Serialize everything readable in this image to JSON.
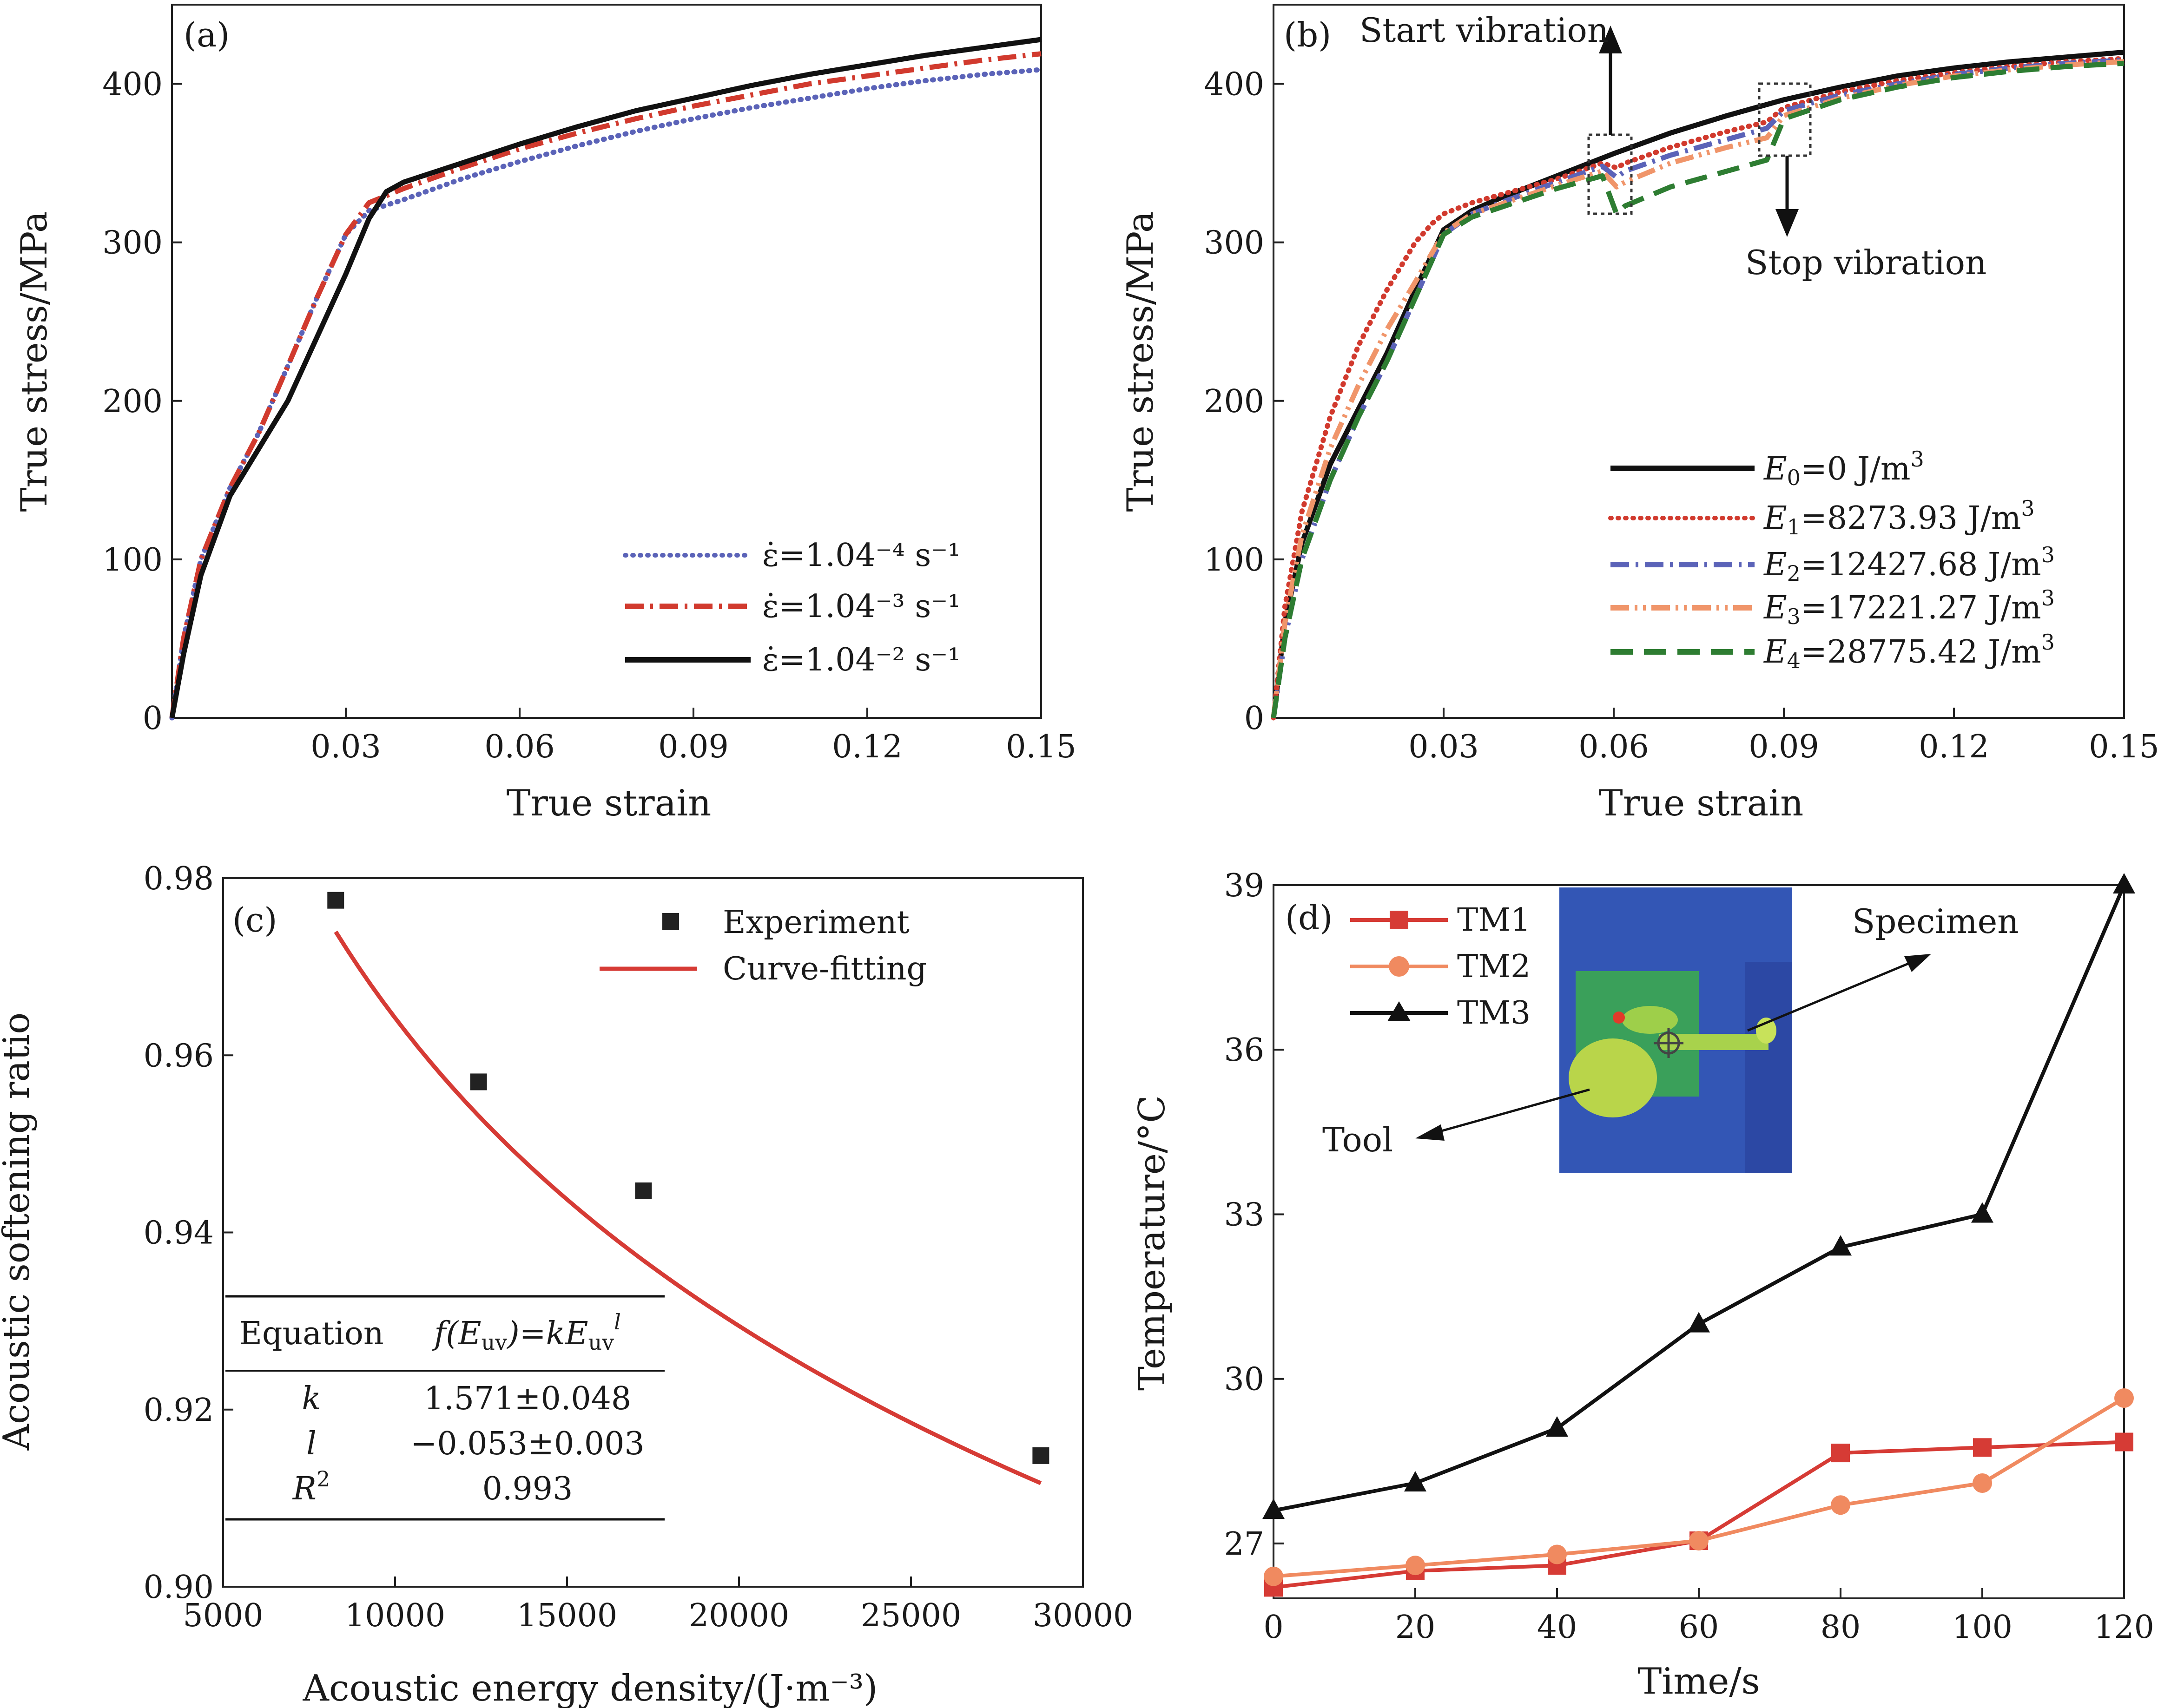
{
  "chart_data": [
    {
      "panel": "(a)",
      "type": "line",
      "xlabel": "True strain",
      "ylabel": "True stress/MPa",
      "xlim": [
        0,
        0.15
      ],
      "ylim": [
        0,
        450
      ],
      "xticks": [
        "0.03",
        "0.06",
        "0.09",
        "0.12",
        "0.15"
      ],
      "yticks": [
        "0",
        "100",
        "200",
        "300",
        "400"
      ],
      "grid": false,
      "legend_position": "bottom-right",
      "series": [
        {
          "name": "ε̇=1.04⁻⁴ s⁻¹",
          "color": "#5b63b8",
          "dash": "dotted",
          "x": [
            0,
            0.002,
            0.005,
            0.01,
            0.015,
            0.02,
            0.025,
            0.03,
            0.034,
            0.04,
            0.05,
            0.06,
            0.07,
            0.08,
            0.09,
            0.1,
            0.11,
            0.12,
            0.13,
            0.14,
            0.15
          ],
          "y": [
            0,
            50,
            100,
            145,
            180,
            222,
            265,
            305,
            320,
            327,
            340,
            351,
            361,
            370,
            378,
            385,
            391,
            397,
            402,
            406,
            409
          ]
        },
        {
          "name": "ε̇=1.04⁻³ s⁻¹",
          "color": "#d13a2e",
          "dash": "dashdot",
          "x": [
            0,
            0.002,
            0.005,
            0.01,
            0.015,
            0.02,
            0.025,
            0.03,
            0.034,
            0.04,
            0.05,
            0.06,
            0.07,
            0.08,
            0.09,
            0.1,
            0.11,
            0.12,
            0.13,
            0.14,
            0.15
          ],
          "y": [
            0,
            50,
            100,
            145,
            180,
            222,
            265,
            305,
            325,
            334,
            347,
            359,
            369,
            378,
            386,
            393,
            400,
            405,
            410,
            415,
            419
          ]
        },
        {
          "name": "ε̇=1.04⁻² s⁻¹",
          "color": "#111111",
          "dash": "solid",
          "x": [
            0,
            0.002,
            0.005,
            0.01,
            0.015,
            0.02,
            0.025,
            0.03,
            0.034,
            0.037,
            0.04,
            0.05,
            0.06,
            0.07,
            0.08,
            0.09,
            0.1,
            0.11,
            0.12,
            0.13,
            0.14,
            0.15
          ],
          "y": [
            0,
            40,
            90,
            140,
            170,
            200,
            240,
            280,
            315,
            332,
            338,
            350,
            362,
            373,
            383,
            391,
            399,
            406,
            412,
            418,
            423,
            428
          ]
        }
      ]
    },
    {
      "panel": "(b)",
      "type": "line",
      "xlabel": "True strain",
      "ylabel": "True stress/MPa",
      "xlim": [
        0,
        0.15
      ],
      "ylim": [
        0,
        450
      ],
      "xticks": [
        "0.03",
        "0.06",
        "0.09",
        "0.12",
        "0.15"
      ],
      "yticks": [
        "0",
        "100",
        "200",
        "300",
        "400"
      ],
      "grid": false,
      "legend_position": "bottom-right",
      "annotations": [
        "Start vibration",
        "Stop vibration"
      ],
      "series": [
        {
          "name_main": "E",
          "name_sub": "0",
          "name_rest": "=0 J/m",
          "name_sup": "3",
          "color": "#111111",
          "dash": "solid",
          "x": [
            0,
            0.002,
            0.005,
            0.01,
            0.015,
            0.02,
            0.025,
            0.03,
            0.035,
            0.04,
            0.05,
            0.06,
            0.07,
            0.08,
            0.09,
            0.1,
            0.11,
            0.12,
            0.13,
            0.14,
            0.15
          ],
          "y": [
            0,
            60,
            110,
            160,
            195,
            230,
            270,
            308,
            320,
            328,
            342,
            356,
            369,
            380,
            390,
            398,
            405,
            410,
            414,
            417,
            420
          ]
        },
        {
          "name_main": "E",
          "name_sub": "1",
          "name_rest": "=8273.93 J/m",
          "name_sup": "3",
          "color": "#d13a2e",
          "dash": "dotted",
          "x": [
            0,
            0.002,
            0.005,
            0.01,
            0.015,
            0.02,
            0.025,
            0.028,
            0.03,
            0.035,
            0.04,
            0.05,
            0.058,
            0.0605,
            0.062,
            0.07,
            0.08,
            0.087,
            0.09,
            0.1,
            0.11,
            0.12,
            0.13,
            0.14,
            0.15
          ],
          "y": [
            0,
            70,
            130,
            190,
            235,
            270,
            300,
            312,
            318,
            325,
            330,
            340,
            350,
            347,
            350,
            360,
            370,
            376,
            385,
            395,
            402,
            407,
            411,
            414,
            416
          ]
        },
        {
          "name_main": "E",
          "name_sub": "2",
          "name_rest": "=12427.68 J/m",
          "name_sup": "3",
          "color": "#5b63b8",
          "dash": "dashdot",
          "x": [
            0,
            0.002,
            0.005,
            0.01,
            0.015,
            0.02,
            0.025,
            0.03,
            0.035,
            0.04,
            0.05,
            0.058,
            0.0605,
            0.062,
            0.07,
            0.08,
            0.087,
            0.09,
            0.1,
            0.11,
            0.12,
            0.13,
            0.14,
            0.15
          ],
          "y": [
            0,
            50,
            100,
            150,
            190,
            225,
            265,
            305,
            318,
            325,
            338,
            348,
            341,
            345,
            355,
            365,
            372,
            383,
            393,
            400,
            406,
            410,
            413,
            415
          ]
        },
        {
          "name_main": "E",
          "name_sub": "3",
          "name_rest": "=17221.27 J/m",
          "name_sup": "3",
          "color": "#f0956a",
          "dash": "dashdotdot",
          "x": [
            0,
            0.002,
            0.005,
            0.01,
            0.015,
            0.02,
            0.025,
            0.03,
            0.035,
            0.04,
            0.05,
            0.058,
            0.0605,
            0.062,
            0.07,
            0.08,
            0.087,
            0.09,
            0.1,
            0.11,
            0.12,
            0.13,
            0.14,
            0.15
          ],
          "y": [
            0,
            60,
            115,
            170,
            210,
            245,
            275,
            306,
            318,
            324,
            336,
            345,
            335,
            338,
            350,
            360,
            366,
            380,
            391,
            399,
            405,
            409,
            412,
            414
          ]
        },
        {
          "name_main": "E",
          "name_sub": "4",
          "name_rest": "=28775.42 J/m",
          "name_sup": "3",
          "color": "#2e7d32",
          "dash": "dashed",
          "x": [
            0,
            0.002,
            0.005,
            0.01,
            0.015,
            0.02,
            0.025,
            0.03,
            0.035,
            0.04,
            0.05,
            0.058,
            0.0605,
            0.062,
            0.07,
            0.08,
            0.087,
            0.09,
            0.1,
            0.11,
            0.12,
            0.13,
            0.14,
            0.15
          ],
          "y": [
            0,
            50,
            100,
            150,
            190,
            225,
            265,
            305,
            316,
            322,
            334,
            342,
            318,
            323,
            335,
            345,
            352,
            378,
            390,
            398,
            404,
            408,
            411,
            413
          ]
        }
      ]
    },
    {
      "panel": "(c)",
      "type": "scatter",
      "xlabel": "Acoustic energy density/(J·m⁻³)",
      "ylabel": "Acoustic softening ratio",
      "xlim": [
        5000,
        30000
      ],
      "ylim": [
        0.9,
        0.98
      ],
      "xticks": [
        "5000",
        "10000",
        "15000",
        "20000",
        "25000",
        "30000"
      ],
      "yticks": [
        "0.90",
        "0.92",
        "0.94",
        "0.96",
        "0.98"
      ],
      "grid": false,
      "legend_position": "top-right",
      "legend": [
        "Experiment",
        "Curve-fitting"
      ],
      "points": {
        "x": [
          8273.93,
          12427.68,
          17221.27,
          28775.42
        ],
        "y": [
          0.9775,
          0.957,
          0.9447,
          0.9148
        ]
      },
      "fit": {
        "k": 1.571,
        "l": -0.053
      },
      "table": {
        "header": [
          "Equation",
          "f(E",
          "uv",
          ")=kE",
          "uv",
          "l"
        ],
        "rows": [
          [
            "k",
            "1.571±0.048"
          ],
          [
            "l",
            "−0.053±0.003"
          ],
          [
            "R",
            "2",
            "0.993"
          ]
        ]
      }
    },
    {
      "panel": "(d)",
      "type": "line",
      "xlabel": "Time/s",
      "ylabel": "Temperature/°C",
      "xlim": [
        0,
        120
      ],
      "ylim": [
        26,
        39
      ],
      "xticks": [
        "0",
        "20",
        "40",
        "60",
        "80",
        "100",
        "120"
      ],
      "yticks": [
        "27",
        "30",
        "33",
        "36",
        "39"
      ],
      "grid": false,
      "legend_position": "top-left",
      "annotations": [
        "Specimen",
        "Tool"
      ],
      "series": [
        {
          "name": "TM1",
          "color": "#d63b35",
          "marker": "square",
          "x": [
            0,
            20,
            40,
            60,
            80,
            100,
            120
          ],
          "y": [
            26.2,
            26.5,
            26.6,
            27.05,
            28.65,
            28.75,
            28.85
          ]
        },
        {
          "name": "TM2",
          "color": "#f08a60",
          "marker": "circle",
          "x": [
            0,
            20,
            40,
            60,
            80,
            100,
            120
          ],
          "y": [
            26.4,
            26.6,
            26.8,
            27.05,
            27.7,
            28.1,
            29.65
          ]
        },
        {
          "name": "TM3",
          "color": "#111111",
          "marker": "triangle",
          "x": [
            0,
            20,
            40,
            60,
            80,
            100,
            120
          ],
          "y": [
            27.6,
            28.1,
            29.1,
            31.0,
            32.4,
            33.0,
            39.0
          ]
        }
      ]
    }
  ]
}
